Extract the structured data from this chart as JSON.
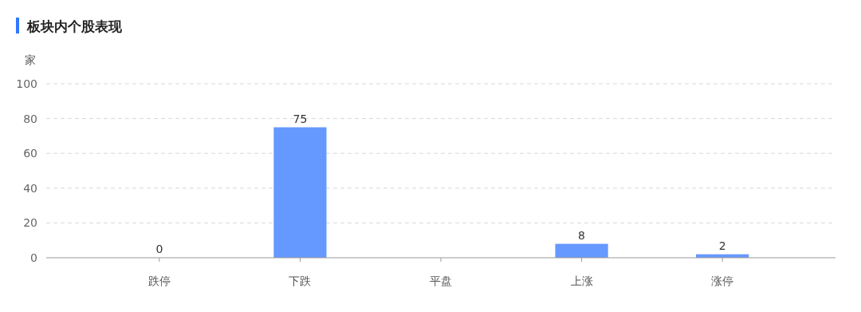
{
  "chart_data": {
    "type": "bar",
    "title": "板块内个股表现",
    "ylabel": "家",
    "categories": [
      "跌停",
      "下跌",
      "平盘",
      "上涨",
      "涨停"
    ],
    "values": [
      0,
      75,
      null,
      8,
      2
    ],
    "color": "#6699ff",
    "ylim": [
      0,
      100
    ],
    "yticks": [
      0,
      20,
      40,
      60,
      80,
      100
    ],
    "grid": "y",
    "data_labels": true
  }
}
